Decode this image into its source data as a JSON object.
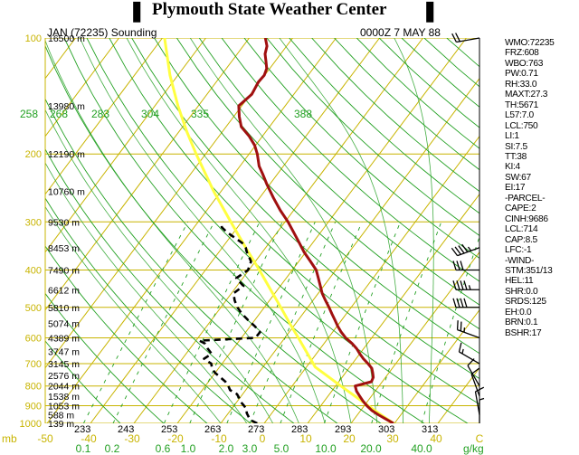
{
  "title": "Plymouth State Weather Center",
  "header": {
    "station": "JAN (72235) Sounding",
    "time": "0000Z  7 MAY 88"
  },
  "indices": [
    "WMO:72235",
    "FRZ:608",
    "WBO:763",
    "PW:0.71",
    "RH:33.0",
    "MAXT:27.3",
    "TH:5671",
    "L57:7.0",
    "LCL:750",
    "LI:1",
    "SI:7.5",
    "TT:38",
    "KI:4",
    "SW:67",
    "EI:17",
    "-PARCEL-",
    "CAPE:2",
    "CINH:9686",
    "LCL:714",
    "CAP:8.5",
    "LFC:-1",
    "-WIND-",
    "STM:351/13",
    "HEL:11",
    "SHR:0.0",
    "SRDS:125",
    "EH:0.0",
    "BRN:0.1",
    "BSHR:17"
  ],
  "colors": {
    "grid": "#c8b400",
    "dry_adiabat": "#22a022",
    "mixing_ratio": "#22a022",
    "temperature": "#a01010",
    "dewpoint": "#000000",
    "parcel": "#ffff40"
  },
  "chart_data": {
    "type": "line",
    "ylabel": "mb",
    "xlabel": "g/kg",
    "pressure_ticks": [
      100,
      200,
      300,
      400,
      500,
      600,
      700,
      800,
      900,
      1000
    ],
    "height_labels": [
      {
        "p": 100,
        "label": "16500 m"
      },
      {
        "p": 150,
        "label": "13980 m"
      },
      {
        "p": 200,
        "label": "12190 m"
      },
      {
        "p": 250,
        "label": "10760 m"
      },
      {
        "p": 300,
        "label": "9530 m"
      },
      {
        "p": 350,
        "label": "8453 m"
      },
      {
        "p": 400,
        "label": "7490 m"
      },
      {
        "p": 450,
        "label": "6612 m"
      },
      {
        "p": 500,
        "label": "5810 m"
      },
      {
        "p": 550,
        "label": "5074 m"
      },
      {
        "p": 600,
        "label": "4389 m"
      },
      {
        "p": 650,
        "label": "3747 m"
      },
      {
        "p": 700,
        "label": "3145 m"
      },
      {
        "p": 750,
        "label": "2576 m"
      },
      {
        "p": 800,
        "label": "2044 m"
      },
      {
        "p": 850,
        "label": "1538 m"
      },
      {
        "p": 900,
        "label": "1053 m"
      },
      {
        "p": 950,
        "label": "588 m"
      },
      {
        "p": 1000,
        "label": "139 m"
      }
    ],
    "temp_ticks": [
      -50,
      -40,
      -30,
      -20,
      -10,
      0,
      10,
      20,
      30,
      40,
      "C"
    ],
    "kelvin_labels": [
      233,
      243,
      253,
      263,
      273,
      283,
      293,
      303,
      313
    ],
    "theta_labels": [
      258,
      268,
      283,
      304,
      335,
      388
    ],
    "mixing_ratio_labels": [
      "0.1",
      "0.2",
      "0.6",
      "1.0",
      "2.0",
      "3.0",
      "5.0",
      "10.0",
      "20.0",
      "40.0"
    ],
    "series": [
      {
        "name": "temperature",
        "points": [
          [
            1000,
            29.8
          ],
          [
            975,
            27.3
          ],
          [
            950,
            24.8
          ],
          [
            925,
            22.5
          ],
          [
            900,
            20.6
          ],
          [
            875,
            18.9
          ],
          [
            850,
            17.3
          ],
          [
            825,
            15.7
          ],
          [
            800,
            14.5
          ],
          [
            780,
            17.5
          ],
          [
            760,
            17.2
          ],
          [
            740,
            16.3
          ],
          [
            720,
            15.3
          ],
          [
            700,
            13.6
          ],
          [
            680,
            11.7
          ],
          [
            660,
            10.0
          ],
          [
            640,
            8.4
          ],
          [
            620,
            6.4
          ],
          [
            600,
            4.0
          ],
          [
            580,
            2.0
          ],
          [
            560,
            0.2
          ],
          [
            540,
            -1.5
          ],
          [
            520,
            -3.3
          ],
          [
            500,
            -5.1
          ],
          [
            480,
            -7.1
          ],
          [
            460,
            -9.1
          ],
          [
            440,
            -10.8
          ],
          [
            420,
            -12.6
          ],
          [
            400,
            -14.5
          ],
          [
            380,
            -17.3
          ],
          [
            360,
            -20.3
          ],
          [
            340,
            -23.1
          ],
          [
            320,
            -26.1
          ],
          [
            300,
            -29.3
          ],
          [
            280,
            -33.1
          ],
          [
            260,
            -36.8
          ],
          [
            240,
            -40.6
          ],
          [
            225,
            -43.5
          ],
          [
            215,
            -45.6
          ],
          [
            200,
            -48.1
          ],
          [
            190,
            -50.2
          ],
          [
            180,
            -53.0
          ],
          [
            170,
            -56.5
          ],
          [
            160,
            -58.7
          ],
          [
            150,
            -60.7
          ],
          [
            140,
            -59.7
          ],
          [
            130,
            -60.3
          ],
          [
            125,
            -60.1
          ],
          [
            120,
            -60.7
          ],
          [
            115,
            -62.1
          ],
          [
            110,
            -63.6
          ],
          [
            105,
            -64.5
          ],
          [
            100,
            -66.3
          ]
        ]
      },
      {
        "name": "dewpoint",
        "points": [
          [
            1000,
            -1.6
          ],
          [
            980,
            -3.8
          ],
          [
            960,
            -4.8
          ],
          [
            940,
            -5.8
          ],
          [
            920,
            -6.4
          ],
          [
            900,
            -7.7
          ],
          [
            880,
            -9.1
          ],
          [
            860,
            -10.1
          ],
          [
            840,
            -11.3
          ],
          [
            820,
            -13.6
          ],
          [
            800,
            -14.7
          ],
          [
            780,
            -16.1
          ],
          [
            760,
            -18.0
          ],
          [
            740,
            -20.0
          ],
          [
            720,
            -21.5
          ],
          [
            700,
            -22.5
          ],
          [
            680,
            -25.0
          ],
          [
            660,
            -24.1
          ],
          [
            640,
            -25.9
          ],
          [
            620,
            -27.5
          ],
          [
            610,
            -29.2
          ],
          [
            600,
            -16.8
          ],
          [
            580,
            -16.7
          ],
          [
            560,
            -18.9
          ],
          [
            540,
            -21.5
          ],
          [
            520,
            -24.0
          ],
          [
            500,
            -26.2
          ],
          [
            480,
            -28.0
          ],
          [
            460,
            -29.5
          ],
          [
            440,
            -28.5
          ],
          [
            420,
            -31.5
          ],
          [
            400,
            -30.2
          ],
          [
            380,
            -31.0
          ],
          [
            360,
            -33.5
          ],
          [
            350,
            -34.6
          ],
          [
            340,
            -36.3
          ],
          [
            330,
            -38.8
          ],
          [
            320,
            -41.4
          ],
          [
            310,
            -43.6
          ],
          [
            300,
            -44.7
          ]
        ]
      },
      {
        "name": "parcel",
        "points": [
          [
            1000,
            29.8
          ],
          [
            950,
            25.4
          ],
          [
            900,
            20.9
          ],
          [
            850,
            16.2
          ],
          [
            800,
            11.2
          ],
          [
            750,
            6.0
          ],
          [
            714,
            2.0
          ],
          [
            700,
            1.0
          ],
          [
            650,
            -2.8
          ],
          [
            600,
            -6.9
          ],
          [
            550,
            -11.4
          ],
          [
            500,
            -16.2
          ],
          [
            450,
            -21.6
          ],
          [
            400,
            -27.6
          ],
          [
            350,
            -34.6
          ],
          [
            300,
            -42.5
          ],
          [
            250,
            -51.7
          ],
          [
            200,
            -62.2
          ],
          [
            175,
            -68.2
          ],
          [
            150,
            -74.7
          ],
          [
            125,
            -81.8
          ],
          [
            100,
            -89.5
          ]
        ]
      }
    ],
    "winds": [
      {
        "p": 100,
        "dir": 260,
        "spd": 20
      },
      {
        "p": 350,
        "dir": 250,
        "spd": 45
      },
      {
        "p": 400,
        "dir": 270,
        "spd": 30
      },
      {
        "p": 450,
        "dir": 270,
        "spd": 45
      },
      {
        "p": 500,
        "dir": 270,
        "spd": 40
      },
      {
        "p": 600,
        "dir": 290,
        "spd": 25
      },
      {
        "p": 700,
        "dir": 300,
        "spd": 15
      },
      {
        "p": 800,
        "dir": 330,
        "spd": 10
      },
      {
        "p": 850,
        "dir": 340,
        "spd": 10
      },
      {
        "p": 950,
        "dir": 350,
        "spd": 10
      },
      {
        "p": 1000,
        "dir": 360,
        "spd": 5
      }
    ]
  }
}
